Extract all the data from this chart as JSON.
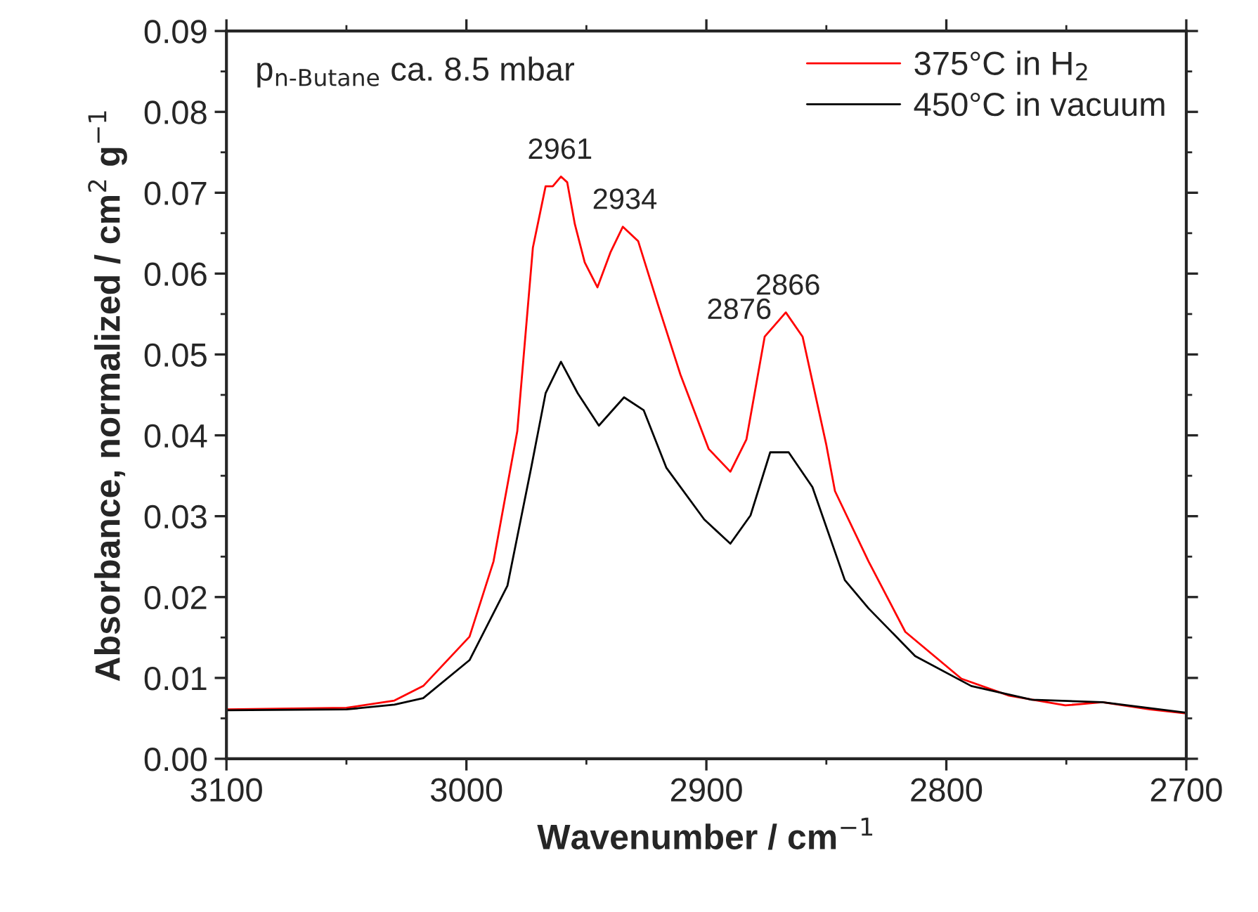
{
  "chart_data": {
    "type": "line",
    "xlabel": "Wavenumber / cm$^{−1}$",
    "ylabel": "Absorbance, normalized / cm$^{2}$ g$^{−1}$",
    "xlim": [
      3100,
      2700
    ],
    "xticks": [
      3100,
      3000,
      2900,
      2800,
      2700
    ],
    "ylim": [
      0,
      0.09
    ],
    "yticks": [
      {
        "value": 0,
        "label": "0.00"
      },
      {
        "value": 0.01,
        "label": "0.01"
      },
      {
        "value": 0.02,
        "label": "0.02"
      },
      {
        "value": 0.03,
        "label": "0.03"
      },
      {
        "value": 0.04,
        "label": "0.04"
      },
      {
        "value": 0.05,
        "label": "0.05"
      },
      {
        "value": 0.06,
        "label": "0.06"
      },
      {
        "value": 0.07,
        "label": "0.07"
      },
      {
        "value": 0.08,
        "label": "0.08"
      },
      {
        "value": 0.09,
        "label": "0.09"
      }
    ],
    "grid": false,
    "legend": "top right",
    "marker": "none",
    "line_style": "solid",
    "annotations": [
      "p$_{n-Butane}$ ca. 8.5 mbar",
      {
        "text": "2961",
        "x": 2961,
        "y": 0.072
      },
      {
        "text": "2934",
        "x": 2934,
        "y": 0.0658
      },
      {
        "text": "2876",
        "x": 2876,
        "y": 0.0522
      },
      {
        "text": "2866",
        "x": 2866,
        "y": 0.0552
      }
    ],
    "series": [
      {
        "name": "375°C in H$_{2}$",
        "color": "#ff0000",
        "x": [
          3100,
          3050,
          3030,
          3018,
          2998.7,
          2988.7,
          2978.8,
          2972.3,
          2967,
          2964,
          2960.6,
          2958,
          2954.8,
          2950.7,
          2945.4,
          2940,
          2934.8,
          2928.4,
          2920.2,
          2910.8,
          2899,
          2890,
          2883.3,
          2875.7,
          2866.9,
          2859.9,
          2850,
          2846.4,
          2832.4,
          2817.1,
          2793.7,
          2773.8,
          2750.4,
          2735,
          2715.2,
          2700
        ],
        "values": [
          0.0061,
          0.0063,
          0.0072,
          0.009,
          0.0151,
          0.0244,
          0.0405,
          0.0632,
          0.0708,
          0.0708,
          0.072,
          0.0713,
          0.0661,
          0.0614,
          0.0583,
          0.0626,
          0.0658,
          0.064,
          0.0562,
          0.0475,
          0.0383,
          0.0355,
          0.0395,
          0.0522,
          0.0552,
          0.0522,
          0.0388,
          0.0331,
          0.0244,
          0.0157,
          0.0099,
          0.0078,
          0.0066,
          0.007,
          0.0061,
          0.0056
        ]
      },
      {
        "name": "450°C in vacuum",
        "color": "#000000",
        "x": [
          3100,
          3050,
          3030,
          3018,
          2998.7,
          2982.9,
          2973,
          2967,
          2960.6,
          2953.6,
          2944.8,
          2934.3,
          2926.1,
          2916.7,
          2900.9,
          2890,
          2881.6,
          2873.4,
          2865.7,
          2855.8,
          2842.3,
          2832.4,
          2813,
          2789.6,
          2764.4,
          2735,
          2700
        ],
        "values": [
          0.006,
          0.0061,
          0.0067,
          0.0075,
          0.0122,
          0.0214,
          0.036,
          0.0452,
          0.0491,
          0.0452,
          0.0412,
          0.0447,
          0.0431,
          0.036,
          0.0296,
          0.0266,
          0.0301,
          0.0379,
          0.0379,
          0.0336,
          0.0221,
          0.0186,
          0.0127,
          0.009,
          0.0073,
          0.007,
          0.0057
        ]
      }
    ]
  }
}
